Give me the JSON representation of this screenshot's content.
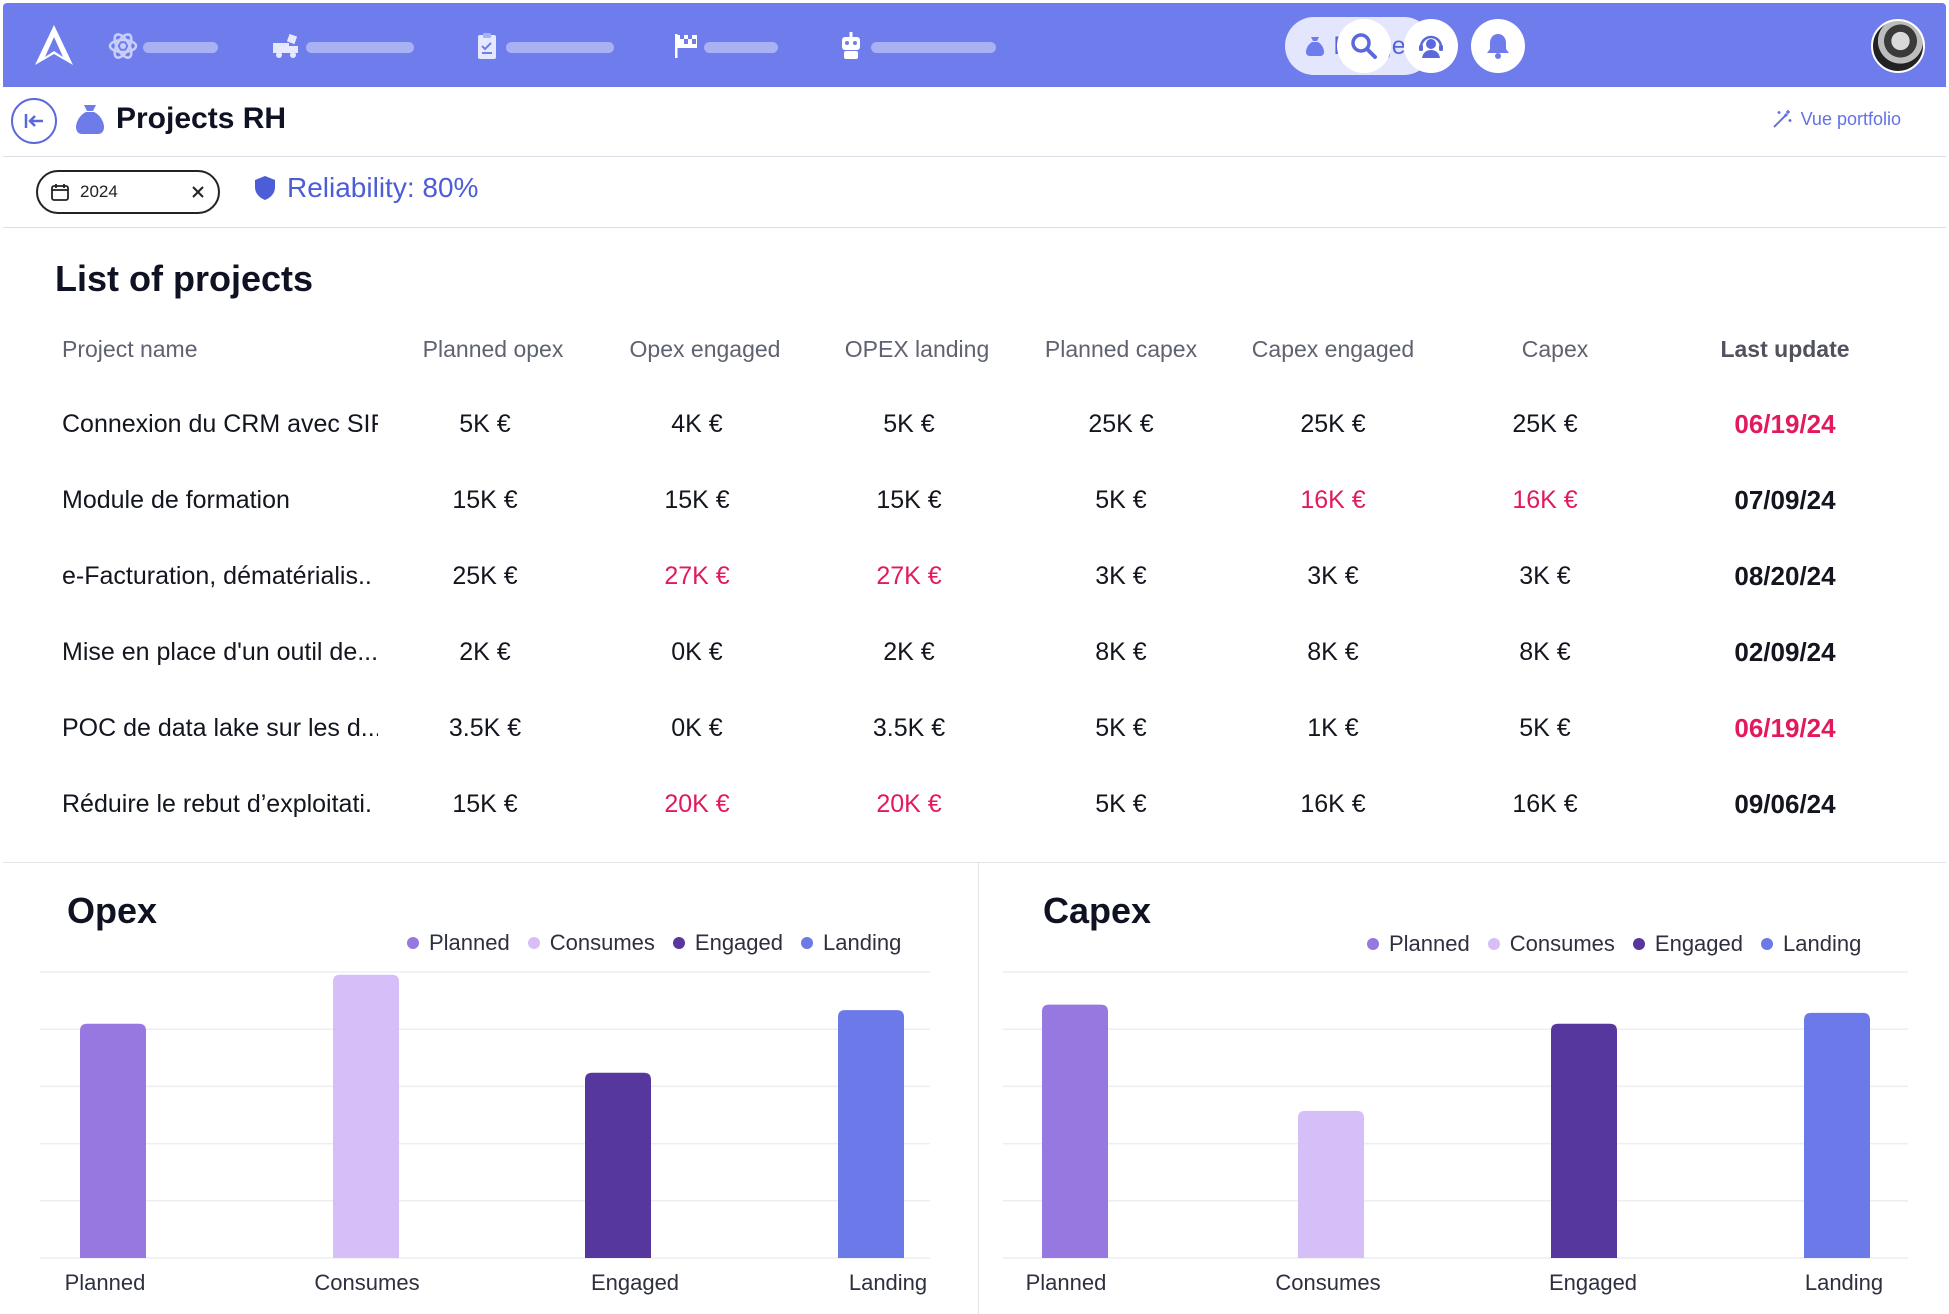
{
  "topnav": {
    "items": [
      {
        "icon": "atom-icon"
      },
      {
        "icon": "truck-icon"
      },
      {
        "icon": "clipboard-icon"
      },
      {
        "icon": "flag-icon"
      },
      {
        "icon": "robot-icon"
      }
    ],
    "budget_label": "Budget",
    "actions": [
      "search-icon",
      "support-icon",
      "bell-icon"
    ]
  },
  "header": {
    "title": "Projects RH",
    "portfolio_label": "Vue portfolio"
  },
  "filters": {
    "year": "2024",
    "reliability": "Reliability: 80%"
  },
  "table": {
    "title": "List of projects",
    "columns": [
      "Project name",
      "Planned opex",
      "Opex engaged",
      "OPEX landing",
      "Planned capex",
      "Capex engaged",
      "Capex",
      "Last update"
    ],
    "rows": [
      {
        "name": "Connexion du CRM avec SIR",
        "planned_opex": "5K €",
        "opex_engaged": "4K €",
        "opex_landing": "5K €",
        "planned_capex": "25K €",
        "capex_engaged": "25K €",
        "capex": "25K €",
        "last_update": "06/19/24"
      },
      {
        "name": "Module de formation",
        "planned_opex": "15K €",
        "opex_engaged": "15K €",
        "opex_landing": "15K €",
        "planned_capex": "5K €",
        "capex_engaged": "16K €",
        "capex": "16K €",
        "last_update": "07/09/24"
      },
      {
        "name": "e-Facturation, dématérialis..",
        "planned_opex": "25K €",
        "opex_engaged": "27K €",
        "opex_landing": "27K €",
        "planned_capex": "3K €",
        "capex_engaged": "3K €",
        "capex": "3K €",
        "last_update": "08/20/24"
      },
      {
        "name": "Mise en place d'un outil de...",
        "planned_opex": "2K €",
        "opex_engaged": "0K €",
        "opex_landing": "2K €",
        "planned_capex": "8K €",
        "capex_engaged": "8K €",
        "capex": "8K €",
        "last_update": "02/09/24"
      },
      {
        "name": "POC de data lake sur les d...",
        "planned_opex": "3.5K €",
        "opex_engaged": "0K €",
        "opex_landing": "3.5K €",
        "planned_capex": "5K €",
        "capex_engaged": "1K €",
        "capex": "5K €",
        "last_update": "06/19/24"
      },
      {
        "name": "Réduire le rebut d’exploitati.",
        "planned_opex": "15K €",
        "opex_engaged": "20K €",
        "opex_landing": "20K €",
        "planned_capex": "5K €",
        "capex_engaged": "16K €",
        "capex": "16K €",
        "last_update": "09/06/24"
      }
    ],
    "highlight": [
      [
        false,
        false,
        false,
        false,
        false,
        false,
        true
      ],
      [
        false,
        false,
        false,
        false,
        true,
        true,
        false
      ],
      [
        false,
        true,
        true,
        false,
        false,
        false,
        false
      ],
      [
        false,
        false,
        false,
        false,
        false,
        false,
        false
      ],
      [
        false,
        false,
        false,
        false,
        false,
        false,
        true
      ],
      [
        false,
        true,
        true,
        false,
        false,
        false,
        false
      ]
    ]
  },
  "colors": {
    "accent": "#6e7cec",
    "alert": "#e3195f",
    "planned": "#9778e0",
    "consumes": "#d6bff8",
    "engaged": "#56379e",
    "landing": "#6b7ae8"
  },
  "chart_data": [
    {
      "type": "bar",
      "title": "Opex",
      "categories": [
        "Planned",
        "Consumes",
        "Engaged",
        "Landing"
      ],
      "values": [
        86,
        104,
        68,
        91
      ],
      "ylim": [
        0,
        105
      ],
      "legend": [
        "Planned",
        "Consumes",
        "Engaged",
        "Landing"
      ],
      "legend_position": "top-right",
      "grid": true
    },
    {
      "type": "bar",
      "title": "Capex",
      "categories": [
        "Planned",
        "Consumes",
        "Engaged",
        "Landing"
      ],
      "values": [
        93,
        54,
        86,
        90
      ],
      "ylim": [
        0,
        105
      ],
      "legend": [
        "Planned",
        "Consumes",
        "Engaged",
        "Landing"
      ],
      "legend_position": "top-right",
      "grid": true
    }
  ]
}
